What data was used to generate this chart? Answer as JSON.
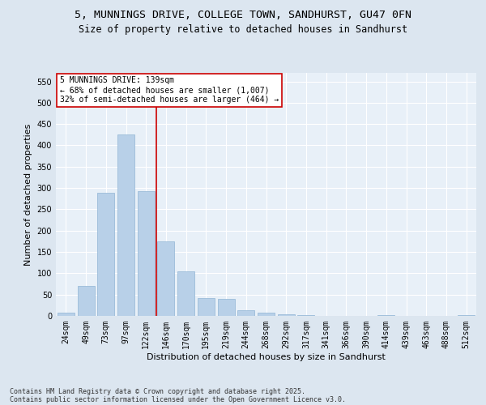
{
  "title_line1": "5, MUNNINGS DRIVE, COLLEGE TOWN, SANDHURST, GU47 0FN",
  "title_line2": "Size of property relative to detached houses in Sandhurst",
  "xlabel": "Distribution of detached houses by size in Sandhurst",
  "ylabel": "Number of detached properties",
  "categories": [
    "24sqm",
    "49sqm",
    "73sqm",
    "97sqm",
    "122sqm",
    "146sqm",
    "170sqm",
    "195sqm",
    "219sqm",
    "244sqm",
    "268sqm",
    "292sqm",
    "317sqm",
    "341sqm",
    "366sqm",
    "390sqm",
    "414sqm",
    "439sqm",
    "463sqm",
    "488sqm",
    "512sqm"
  ],
  "values": [
    7,
    71,
    289,
    425,
    293,
    175,
    105,
    42,
    40,
    14,
    8,
    3,
    1,
    0,
    0,
    0,
    1,
    0,
    0,
    0,
    1
  ],
  "bar_color": "#b8d0e8",
  "bar_edge_color": "#90b4d4",
  "vline_color": "#cc0000",
  "annotation_line1": "5 MUNNINGS DRIVE: 139sqm",
  "annotation_line2": "← 68% of detached houses are smaller (1,007)",
  "annotation_line3": "32% of semi-detached houses are larger (464) →",
  "annotation_box_color": "#ffffff",
  "annotation_box_edge_color": "#cc0000",
  "ylim": [
    0,
    570
  ],
  "yticks": [
    0,
    50,
    100,
    150,
    200,
    250,
    300,
    350,
    400,
    450,
    500,
    550
  ],
  "bg_color": "#dce6f0",
  "plot_bg_color": "#e8f0f8",
  "footer_line1": "Contains HM Land Registry data © Crown copyright and database right 2025.",
  "footer_line2": "Contains public sector information licensed under the Open Government Licence v3.0.",
  "title_fontsize": 9.5,
  "subtitle_fontsize": 8.5,
  "axis_label_fontsize": 8,
  "tick_fontsize": 7,
  "annotation_fontsize": 7,
  "footer_fontsize": 6
}
